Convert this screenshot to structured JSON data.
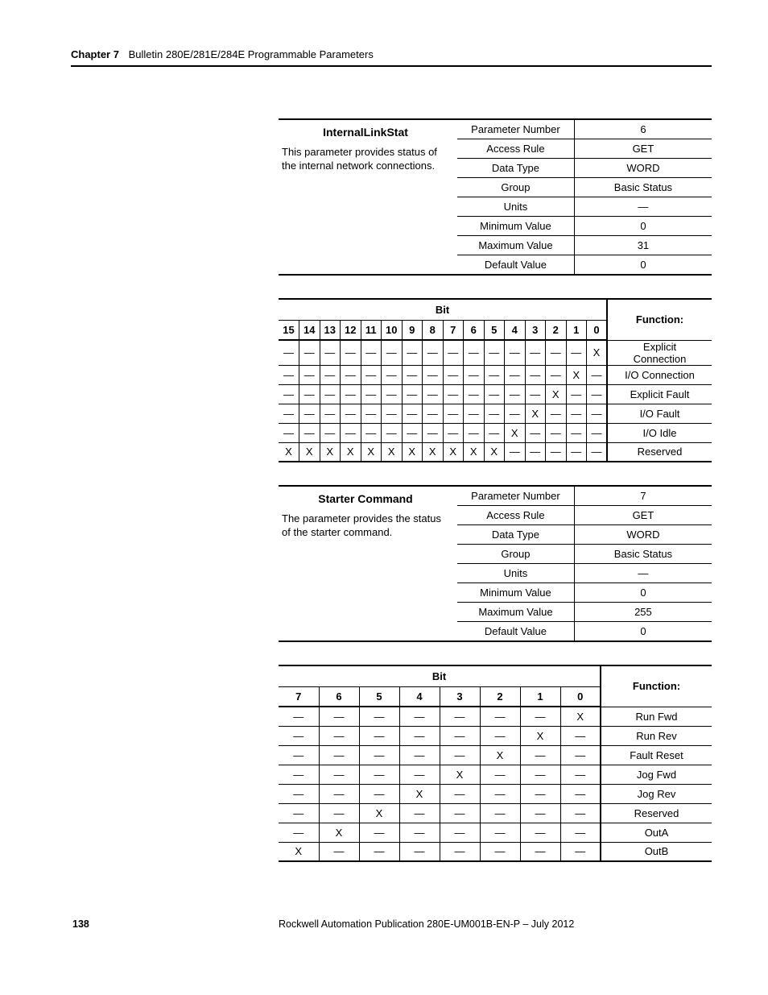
{
  "header": {
    "chapter": "Chapter 7",
    "title": "Bulletin 280E/281E/284E Programmable Parameters"
  },
  "param1": {
    "title": "InternalLinkStat",
    "desc": "This parameter provides status of the internal network connections.",
    "rows": [
      {
        "k": "Parameter Number",
        "v": "6"
      },
      {
        "k": "Access Rule",
        "v": "GET"
      },
      {
        "k": "Data Type",
        "v": "WORD"
      },
      {
        "k": "Group",
        "v": "Basic Status"
      },
      {
        "k": "Units",
        "v": "—"
      },
      {
        "k": "Minimum Value",
        "v": "0"
      },
      {
        "k": "Maximum Value",
        "v": "31"
      },
      {
        "k": "Default Value",
        "v": "0"
      }
    ]
  },
  "bit16": {
    "superhead": "Bit",
    "func_head": "Function:",
    "cols": [
      "15",
      "14",
      "13",
      "12",
      "11",
      "10",
      "9",
      "8",
      "7",
      "6",
      "5",
      "4",
      "3",
      "2",
      "1",
      "0"
    ],
    "rows": [
      {
        "cells": [
          "—",
          "—",
          "—",
          "—",
          "—",
          "—",
          "—",
          "—",
          "—",
          "—",
          "—",
          "—",
          "—",
          "—",
          "—",
          "X"
        ],
        "func": "Explicit Connection"
      },
      {
        "cells": [
          "—",
          "—",
          "—",
          "—",
          "—",
          "—",
          "—",
          "—",
          "—",
          "—",
          "—",
          "—",
          "—",
          "—",
          "X",
          "—"
        ],
        "func": "I/O Connection"
      },
      {
        "cells": [
          "—",
          "—",
          "—",
          "—",
          "—",
          "—",
          "—",
          "—",
          "—",
          "—",
          "—",
          "—",
          "—",
          "X",
          "—",
          "—"
        ],
        "func": "Explicit Fault"
      },
      {
        "cells": [
          "—",
          "—",
          "—",
          "—",
          "—",
          "—",
          "—",
          "—",
          "—",
          "—",
          "—",
          "—",
          "X",
          "—",
          "—",
          "—"
        ],
        "func": "I/O Fault"
      },
      {
        "cells": [
          "—",
          "—",
          "—",
          "—",
          "—",
          "—",
          "—",
          "—",
          "—",
          "—",
          "—",
          "X",
          "—",
          "—",
          "—",
          "—"
        ],
        "func": "I/O Idle"
      },
      {
        "cells": [
          "X",
          "X",
          "X",
          "X",
          "X",
          "X",
          "X",
          "X",
          "X",
          "X",
          "X",
          "—",
          "—",
          "—",
          "—",
          "—"
        ],
        "func": "Reserved"
      }
    ]
  },
  "param2": {
    "title": "Starter Command",
    "desc": "The parameter provides the status of the starter command.",
    "rows": [
      {
        "k": "Parameter Number",
        "v": "7"
      },
      {
        "k": "Access Rule",
        "v": "GET"
      },
      {
        "k": "Data Type",
        "v": "WORD"
      },
      {
        "k": "Group",
        "v": "Basic Status"
      },
      {
        "k": "Units",
        "v": "—"
      },
      {
        "k": "Minimum Value",
        "v": "0"
      },
      {
        "k": "Maximum Value",
        "v": "255"
      },
      {
        "k": "Default Value",
        "v": "0"
      }
    ]
  },
  "bit8": {
    "superhead": "Bit",
    "func_head": "Function:",
    "cols": [
      "7",
      "6",
      "5",
      "4",
      "3",
      "2",
      "1",
      "0"
    ],
    "rows": [
      {
        "cells": [
          "—",
          "—",
          "—",
          "—",
          "—",
          "—",
          "—",
          "X"
        ],
        "func": "Run Fwd"
      },
      {
        "cells": [
          "—",
          "—",
          "—",
          "—",
          "—",
          "—",
          "X",
          "—"
        ],
        "func": "Run Rev"
      },
      {
        "cells": [
          "—",
          "—",
          "—",
          "—",
          "—",
          "X",
          "—",
          "—"
        ],
        "func": "Fault Reset"
      },
      {
        "cells": [
          "—",
          "—",
          "—",
          "—",
          "X",
          "—",
          "—",
          "—"
        ],
        "func": "Jog Fwd"
      },
      {
        "cells": [
          "—",
          "—",
          "—",
          "X",
          "—",
          "—",
          "—",
          "—"
        ],
        "func": "Jog Rev"
      },
      {
        "cells": [
          "—",
          "—",
          "X",
          "—",
          "—",
          "—",
          "—",
          "—"
        ],
        "func": "Reserved"
      },
      {
        "cells": [
          "—",
          "X",
          "—",
          "—",
          "—",
          "—",
          "—",
          "—"
        ],
        "func": "OutA"
      },
      {
        "cells": [
          "X",
          "—",
          "—",
          "—",
          "—",
          "—",
          "—",
          "—"
        ],
        "func": "OutB"
      }
    ]
  },
  "footer": {
    "page": "138",
    "pub": "Rockwell Automation Publication 280E-UM001B-EN-P – July 2012"
  }
}
